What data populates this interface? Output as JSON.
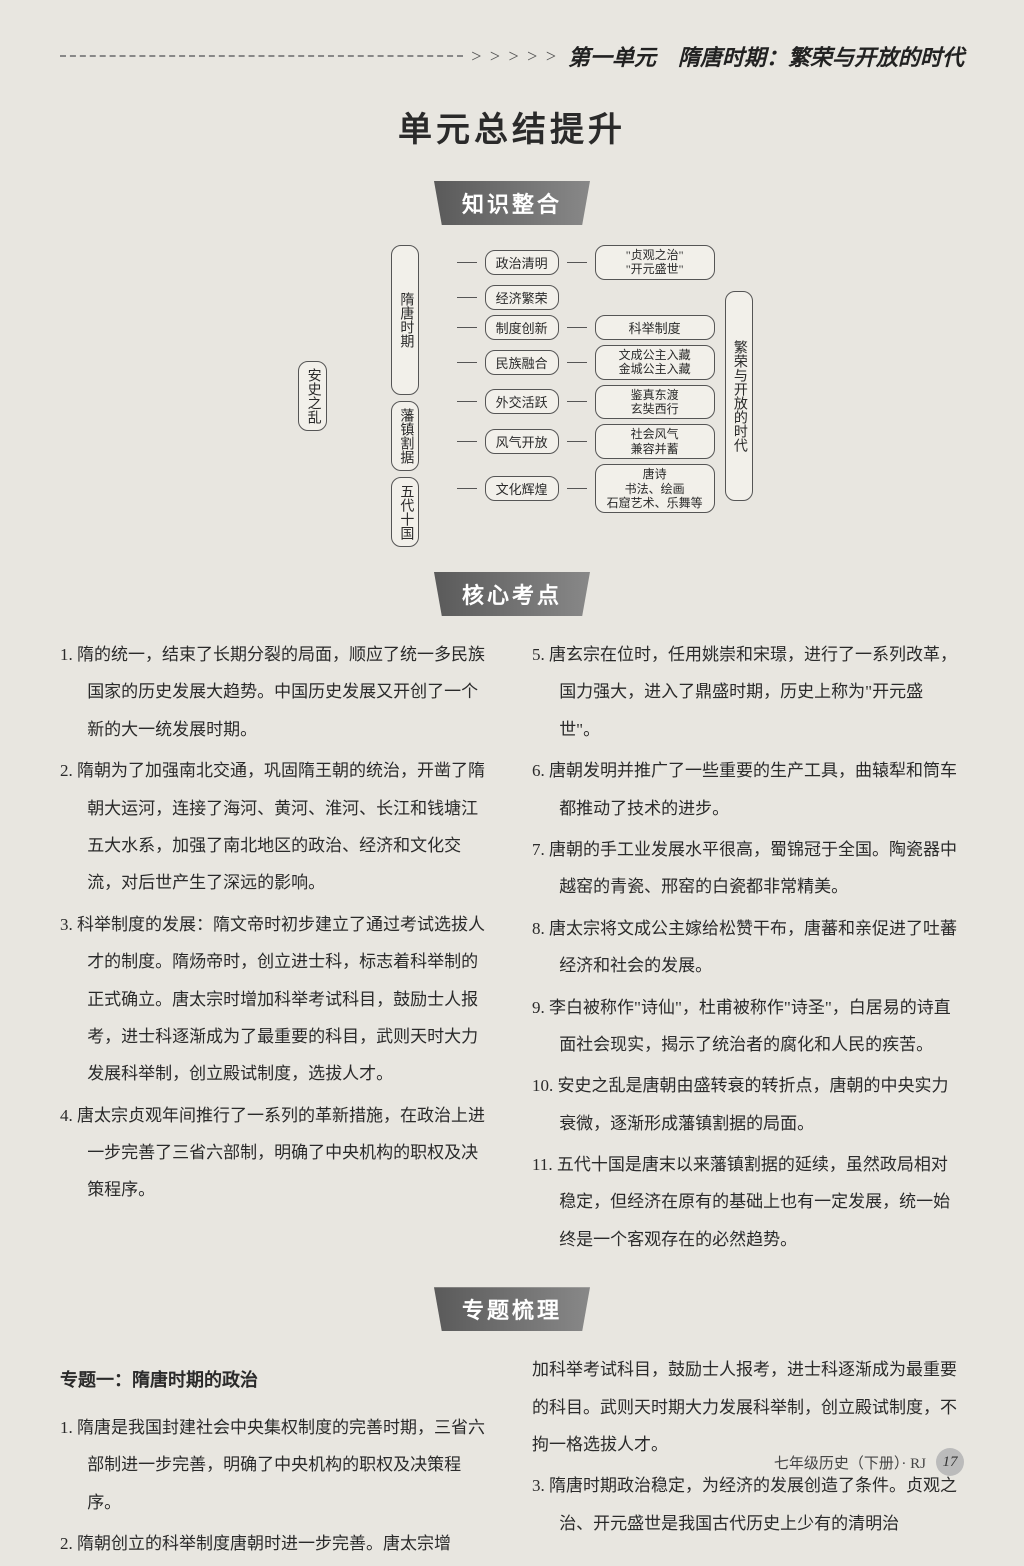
{
  "header": {
    "arrows": "> > > > >",
    "unit": "第一单元　隋唐时期：繁荣与开放的时代"
  },
  "mainTitle": "单元总结提升",
  "banners": {
    "knowledge": "知识整合",
    "core": "核心考点",
    "topics": "专题梳理"
  },
  "diagram": {
    "leftTop": "隋唐时期",
    "leftSide1": "安史之乱",
    "leftSide2": "藩镇割据",
    "leftBottom": "五代十国",
    "right": "繁荣与开放的时代",
    "rows": [
      {
        "a": "政治清明",
        "b": "\"贞观之治\"\n\"开元盛世\""
      },
      {
        "a": "经济繁荣",
        "b": ""
      },
      {
        "a": "制度创新",
        "b": "科举制度"
      },
      {
        "a": "民族融合",
        "b": "文成公主入藏\n金城公主入藏"
      },
      {
        "a": "外交活跃",
        "b": "鉴真东渡\n玄奘西行"
      },
      {
        "a": "风气开放",
        "b": "社会风气\n兼容并蓄"
      },
      {
        "a": "文化辉煌",
        "b": "唐诗\n书法、绘画\n石窟艺术、乐舞等"
      }
    ]
  },
  "core": {
    "left": [
      "1. 隋的统一，结束了长期分裂的局面，顺应了统一多民族国家的历史发展大趋势。中国历史发展又开创了一个新的大一统发展时期。",
      "2. 隋朝为了加强南北交通，巩固隋王朝的统治，开凿了隋朝大运河，连接了海河、黄河、淮河、长江和钱塘江五大水系，加强了南北地区的政治、经济和文化交流，对后世产生了深远的影响。",
      "3. 科举制度的发展：隋文帝时初步建立了通过考试选拔人才的制度。隋炀帝时，创立进士科，标志着科举制的正式确立。唐太宗时增加科举考试科目，鼓励士人报考，进士科逐渐成为了最重要的科目，武则天时大力发展科举制，创立殿试制度，选拔人才。",
      "4. 唐太宗贞观年间推行了一系列的革新措施，在政治上进一步完善了三省六部制，明确了中央机构的职权及决策程序。"
    ],
    "right": [
      "5. 唐玄宗在位时，任用姚崇和宋璟，进行了一系列改革，国力强大，进入了鼎盛时期，历史上称为\"开元盛世\"。",
      "6. 唐朝发明并推广了一些重要的生产工具，曲辕犁和筒车都推动了技术的进步。",
      "7. 唐朝的手工业发展水平很高，蜀锦冠于全国。陶瓷器中越窑的青瓷、邢窑的白瓷都非常精美。",
      "8. 唐太宗将文成公主嫁给松赞干布，唐蕃和亲促进了吐蕃经济和社会的发展。",
      "9. 李白被称作\"诗仙\"，杜甫被称作\"诗圣\"，白居易的诗直面社会现实，揭示了统治者的腐化和人民的疾苦。",
      "10. 安史之乱是唐朝由盛转衰的转折点，唐朝的中央实力衰微，逐渐形成藩镇割据的局面。",
      "11. 五代十国是唐末以来藩镇割据的延续，虽然政局相对稳定，但经济在原有的基础上也有一定发展，统一始终是一个客观存在的必然趋势。"
    ]
  },
  "topics": {
    "subtitle": "专题一：隋唐时期的政治",
    "left": [
      "1. 隋唐是我国封建社会中央集权制度的完善时期，三省六部制进一步完善，明确了中央机构的职权及决策程序。",
      "2. 隋朝创立的科举制度唐朝时进一步完善。唐太宗增"
    ],
    "right": [
      "加科举考试科目，鼓励士人报考，进士科逐渐成为最重要的科目。武则天时期大力发展科举制，创立殿试制度，不拘一格选拔人才。",
      "3. 隋唐时期政治稳定，为经济的发展创造了条件。贞观之治、开元盛世是我国古代历史上少有的清明治"
    ]
  },
  "footer": {
    "text": "七年级历史（下册）· RJ",
    "page": "17"
  },
  "colors": {
    "bg": "#e8e6e0",
    "text": "#2a2a2a",
    "banner": "#5a5a5a"
  }
}
